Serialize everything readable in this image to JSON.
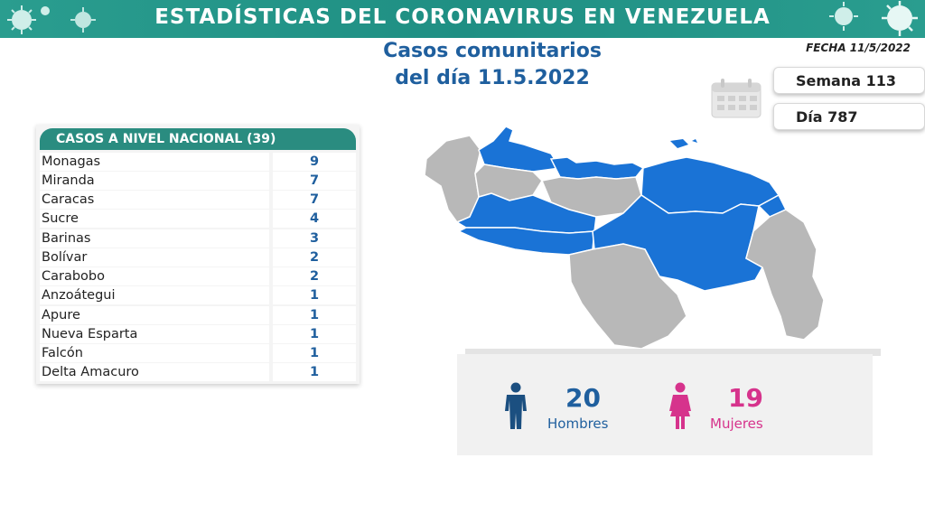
{
  "header": {
    "title": "ESTADÍSTICAS DEL CORONAVIRUS EN VENEZUELA"
  },
  "fecha": "FECHA 11/5/2022",
  "subtitle": {
    "line1": "Casos comunitarios",
    "line2": "del día 11.5.2022"
  },
  "semana": "Semana 113",
  "dia": "Día 787",
  "table": {
    "header": "CASOS A NIVEL NACIONAL  (39)",
    "rows": [
      {
        "state": "Monagas",
        "cases": "9"
      },
      {
        "state": "Miranda",
        "cases": "7"
      },
      {
        "state": "Caracas",
        "cases": "7"
      },
      {
        "state": "Sucre",
        "cases": "4"
      },
      {
        "state": "Barinas",
        "cases": "3"
      },
      {
        "state": "Bolívar",
        "cases": "2"
      },
      {
        "state": "Carabobo",
        "cases": "2"
      },
      {
        "state": "Anzoátegui",
        "cases": "1"
      },
      {
        "state": "Apure",
        "cases": "1"
      },
      {
        "state": "Nueva Esparta",
        "cases": "1"
      },
      {
        "state": "Falcón",
        "cases": "1"
      },
      {
        "state": "Delta Amacuro",
        "cases": "1"
      }
    ]
  },
  "gender": {
    "men_count": "20",
    "men_label": "Hombres",
    "women_count": "19",
    "women_label": "Mujeres"
  },
  "colors": {
    "teal": "#2a9d8f",
    "blue": "#1f5f9e",
    "map_affected": "#1a73d6",
    "map_other": "#b8b8b8",
    "pink": "#d6338c"
  },
  "icons": [
    "virus-icon",
    "calendar-icon",
    "man-icon",
    "woman-icon"
  ]
}
